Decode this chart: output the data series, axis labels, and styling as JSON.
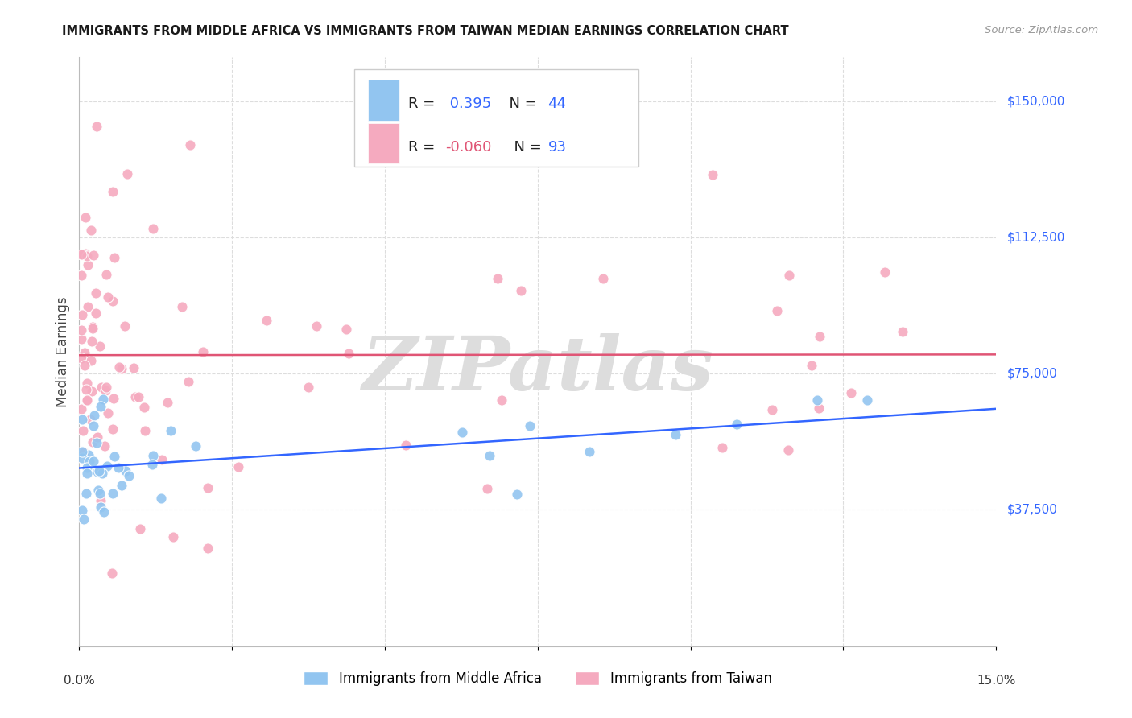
{
  "title": "IMMIGRANTS FROM MIDDLE AFRICA VS IMMIGRANTS FROM TAIWAN MEDIAN EARNINGS CORRELATION CHART",
  "source": "Source: ZipAtlas.com",
  "ylabel": "Median Earnings",
  "xlim": [
    0.0,
    0.15
  ],
  "ylim": [
    0,
    162000
  ],
  "blue_R": 0.395,
  "blue_N": 44,
  "pink_R": -0.06,
  "pink_N": 93,
  "blue_color": "#92C5F0",
  "pink_color": "#F5AABF",
  "blue_line_color": "#3366FF",
  "pink_line_color": "#E05575",
  "y_tick_vals": [
    37500,
    75000,
    112500,
    150000
  ],
  "y_tick_labels": [
    "$37,500",
    "$75,000",
    "$112,500",
    "$150,000"
  ],
  "watermark_text": "ZIPatlas",
  "background_color": "#FFFFFF",
  "grid_color": "#DDDDDD",
  "legend_label_blue": "Immigrants from Middle Africa",
  "legend_label_pink": "Immigrants from Taiwan"
}
